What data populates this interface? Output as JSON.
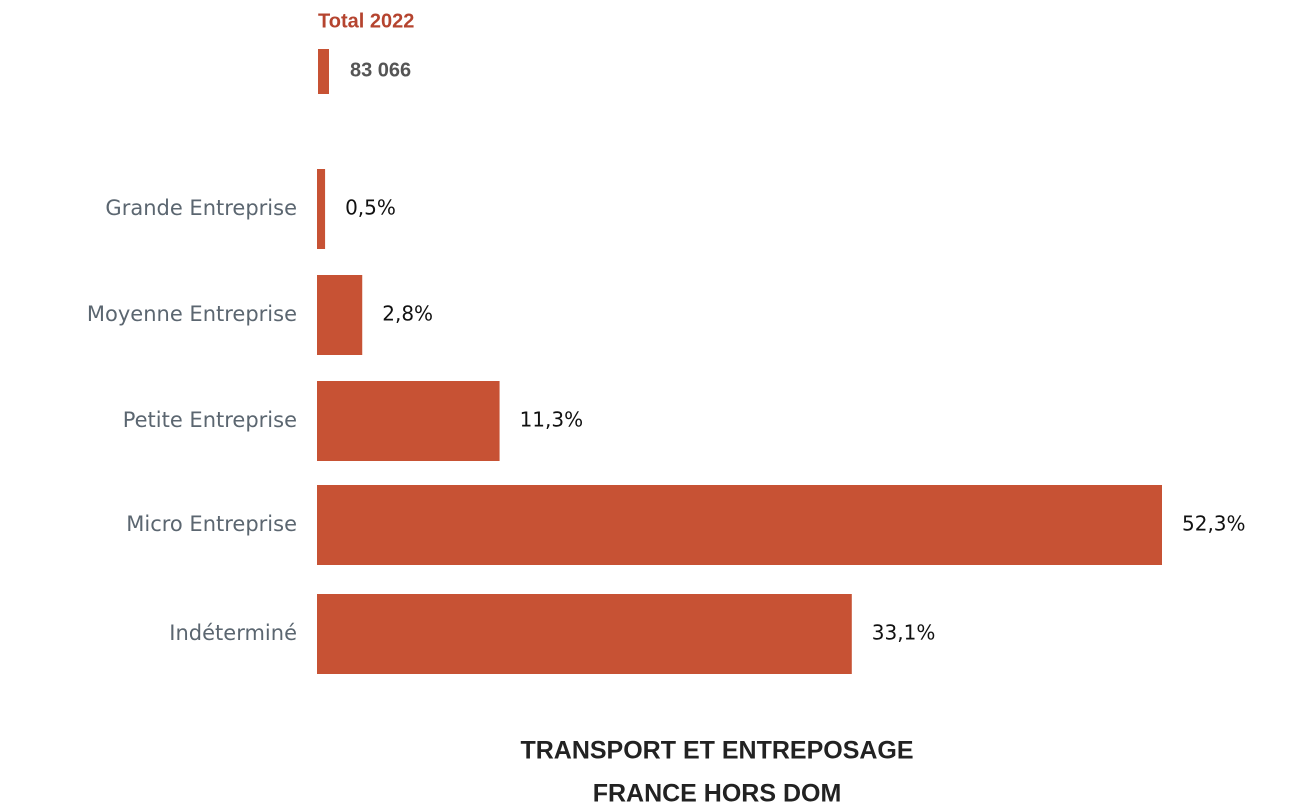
{
  "chart_data": {
    "type": "bar",
    "orientation": "horizontal",
    "total_label": "Total 2022",
    "total_value": "83 066",
    "categories": [
      "Grande Entreprise",
      "Moyenne Entreprise",
      "Petite Entreprise",
      "Micro Entreprise",
      "Indéterminé"
    ],
    "values": [
      0.5,
      2.8,
      11.3,
      52.3,
      33.1
    ],
    "value_labels": [
      "0,5%",
      "2,8%",
      "11,3%",
      "52,3%",
      "33,1%"
    ],
    "color": "#c75234",
    "title": [
      "TRANSPORT ET ENTREPOSAGE",
      "FRANCE HORS DOM"
    ]
  }
}
